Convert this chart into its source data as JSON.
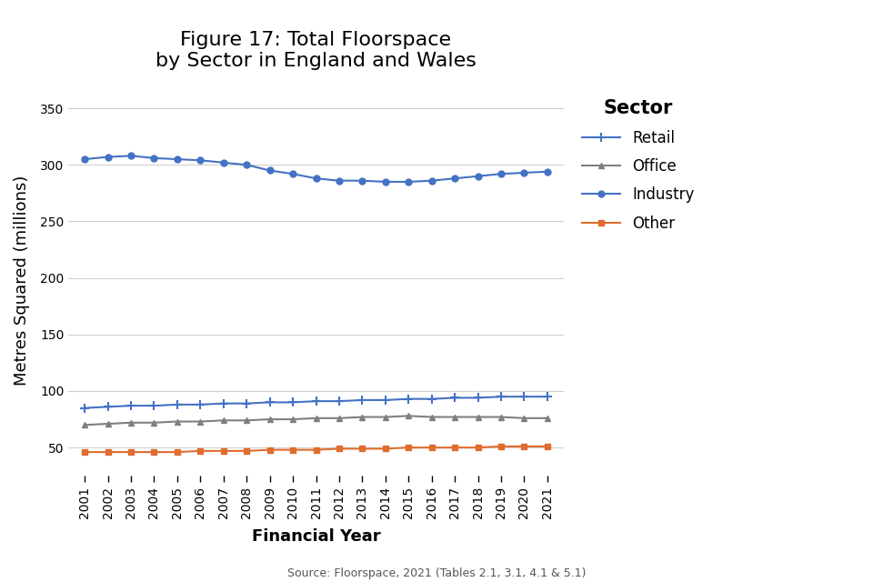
{
  "title": "Figure 17: Total Floorspace\nby Sector in England and Wales",
  "xlabel": "Financial Year",
  "ylabel": "Metres Squared (millions)",
  "source": "Source: Floorspace, 2021 (Tables 2.1, 3.1, 4.1 & 5.1)",
  "years": [
    2001,
    2002,
    2003,
    2004,
    2005,
    2006,
    2007,
    2008,
    2009,
    2010,
    2011,
    2012,
    2013,
    2014,
    2015,
    2016,
    2017,
    2018,
    2019,
    2020,
    2021
  ],
  "industry": [
    305,
    307,
    308,
    306,
    305,
    304,
    302,
    300,
    295,
    292,
    288,
    286,
    286,
    285,
    285,
    286,
    288,
    290,
    292,
    293,
    294
  ],
  "retail": [
    85,
    86,
    87,
    87,
    88,
    88,
    89,
    89,
    90,
    90,
    91,
    91,
    92,
    92,
    93,
    93,
    94,
    94,
    95,
    95,
    95
  ],
  "office": [
    70,
    71,
    72,
    72,
    73,
    73,
    74,
    74,
    75,
    75,
    76,
    76,
    77,
    77,
    78,
    77,
    77,
    77,
    77,
    76,
    76
  ],
  "other": [
    46,
    46,
    46,
    46,
    46,
    47,
    47,
    47,
    48,
    48,
    48,
    49,
    49,
    49,
    50,
    50,
    50,
    50,
    51,
    51,
    51
  ],
  "industry_color": "#4472c4",
  "retail_color": "#4472c4",
  "office_color": "#7f7f7f",
  "other_color": "#e06c2e",
  "ylim": [
    25,
    370
  ],
  "yticks": [
    50,
    100,
    150,
    200,
    250,
    300,
    350
  ],
  "background_color": "#ffffff",
  "legend_title": "Sector",
  "title_fontsize": 16,
  "axis_label_fontsize": 13,
  "tick_fontsize": 10,
  "legend_fontsize": 12,
  "source_fontsize": 9
}
